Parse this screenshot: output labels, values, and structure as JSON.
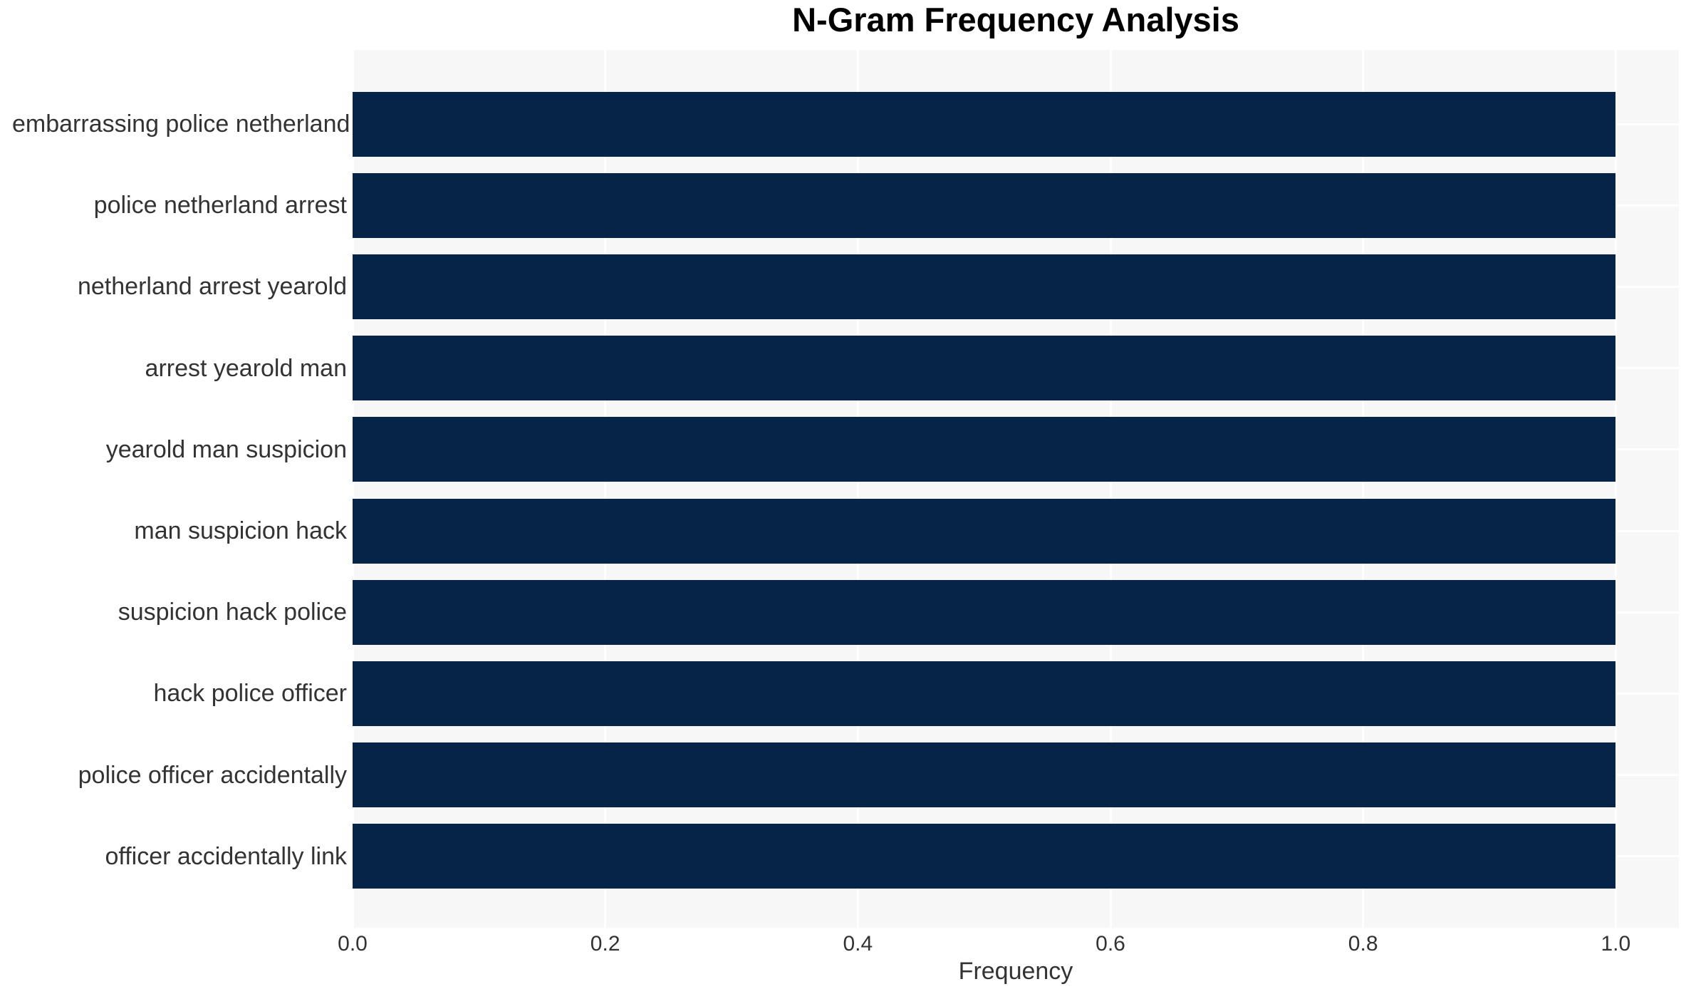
{
  "chart_data": {
    "type": "bar",
    "orientation": "horizontal",
    "title": "N-Gram Frequency Analysis",
    "xlabel": "Frequency",
    "ylabel": "",
    "categories": [
      "embarrassing police netherland",
      "police netherland arrest",
      "netherland arrest yearold",
      "arrest yearold man",
      "yearold man suspicion",
      "man suspicion hack",
      "suspicion hack police",
      "hack police officer",
      "police officer accidentally",
      "officer accidentally link"
    ],
    "values": [
      1.0,
      1.0,
      1.0,
      1.0,
      1.0,
      1.0,
      1.0,
      1.0,
      1.0,
      1.0
    ],
    "xticks": [
      "0.0",
      "0.2",
      "0.4",
      "0.6",
      "0.8",
      "1.0"
    ],
    "xlim": [
      0,
      1.05
    ],
    "grid": "on",
    "legend": "none",
    "colors": {
      "bar": "#062448",
      "plot_background": "#f7f7f7",
      "gridline": "#ffffff",
      "figure_background": "#ffffff",
      "title_text": "#000000",
      "axis_text": "#333333"
    }
  }
}
